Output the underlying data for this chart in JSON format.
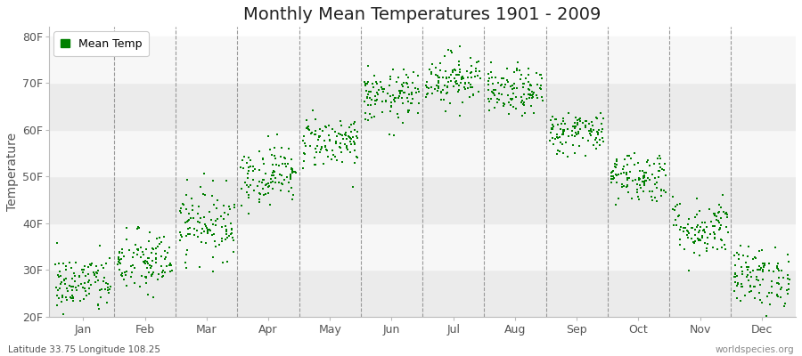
{
  "title": "Monthly Mean Temperatures 1901 - 2009",
  "ylabel": "Temperature",
  "subtitle": "Latitude 33.75 Longitude 108.25",
  "watermark": "worldspecies.org",
  "dot_color": "#008000",
  "bg_color": "#ffffff",
  "plot_bg_color": "#ffffff",
  "band_color_even": "#ebebeb",
  "band_color_odd": "#f7f7f7",
  "ylim": [
    20,
    82
  ],
  "yticks": [
    20,
    30,
    40,
    50,
    60,
    70,
    80
  ],
  "ytick_labels": [
    "20F",
    "30F",
    "40F",
    "50F",
    "60F",
    "70F",
    "80F"
  ],
  "months": [
    "Jan",
    "Feb",
    "Mar",
    "Apr",
    "May",
    "Jun",
    "Jul",
    "Aug",
    "Sep",
    "Oct",
    "Nov",
    "Dec"
  ],
  "month_means": [
    27.0,
    31.5,
    40.0,
    50.5,
    57.5,
    67.0,
    71.0,
    68.0,
    59.5,
    50.0,
    39.0,
    28.5
  ],
  "month_std": [
    3.2,
    3.5,
    3.8,
    3.2,
    2.8,
    2.8,
    2.8,
    2.5,
    2.3,
    2.8,
    3.2,
    3.2
  ],
  "n_years": 109,
  "seed": 42,
  "dot_size": 3,
  "title_fontsize": 14,
  "axis_fontsize": 10,
  "tick_fontsize": 9,
  "legend_fontsize": 9
}
